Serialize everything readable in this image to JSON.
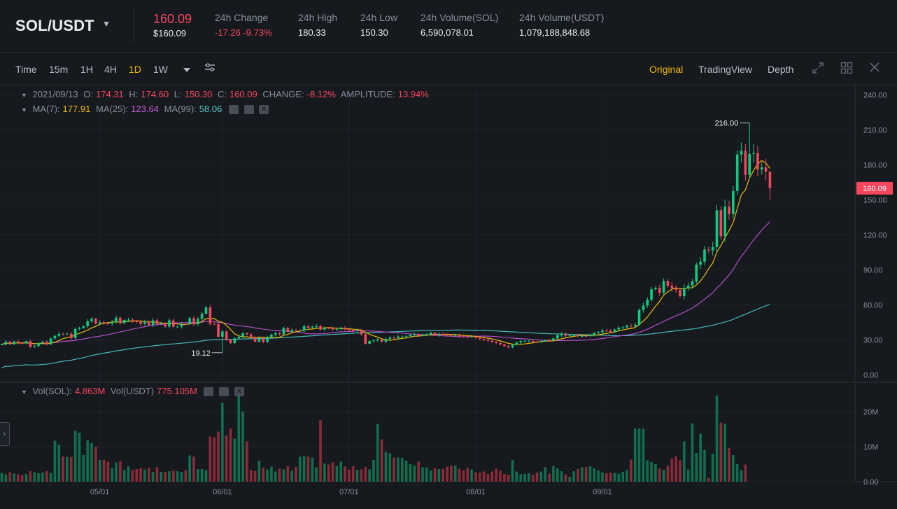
{
  "header": {
    "pair": "SOL/USDT",
    "last_price": "160.09",
    "last_price_usd": "$160.09",
    "stats": [
      {
        "label": "24h Change",
        "value": "-17.26 -9.73%",
        "negative": true
      },
      {
        "label": "24h High",
        "value": "180.33",
        "negative": false
      },
      {
        "label": "24h Low",
        "value": "150.30",
        "negative": false
      },
      {
        "label": "24h Volume(SOL)",
        "value": "6,590,078.01",
        "negative": false
      },
      {
        "label": "24h Volume(USDT)",
        "value": "1,079,188,848.68",
        "negative": false
      }
    ]
  },
  "toolbar": {
    "intervals": [
      "Time",
      "15m",
      "1H",
      "4H",
      "1D",
      "1W"
    ],
    "active_interval": "1D",
    "views": [
      "Original",
      "TradingView",
      "Depth"
    ],
    "active_view": "Original",
    "icons": [
      "chevron-down-icon",
      "settings-sliders-icon",
      "expand-icon",
      "grid-icon",
      "close-icon"
    ]
  },
  "legend": {
    "date": "2021/09/13",
    "o_label": "O:",
    "o": "174.31",
    "h_label": "H:",
    "h": "174.60",
    "l_label": "L:",
    "l": "150.30",
    "c_label": "C:",
    "c": "160.09",
    "change_label": "CHANGE:",
    "change": "-8.12%",
    "amp_label": "AMPLITUDE:",
    "amp": "13.94%",
    "ma7_label": "MA(7):",
    "ma7": "177.91",
    "ma25_label": "MA(25):",
    "ma25": "123.64",
    "ma99_label": "MA(99):",
    "ma99": "58.06",
    "vol_sol_label": "Vol(SOL):",
    "vol_sol": "4.863M",
    "vol_usdt_label": "Vol(USDT)",
    "vol_usdt": "775.105M"
  },
  "colors": {
    "up": "#0ecb81",
    "down": "#f6465d",
    "ma7": "#f0b90b",
    "ma25": "#b44dc8",
    "ma99": "#45b7b7",
    "accent": "#f0b90b"
  },
  "chart_data": {
    "type": "candlestick",
    "x_tick_labels": [
      "05/01",
      "06/01",
      "07/01",
      "08/01",
      "09/01"
    ],
    "price_axis": {
      "ticks": [
        0,
        30,
        60,
        90,
        120,
        150,
        180,
        210,
        240
      ],
      "tick_labels": [
        "0.00",
        "30.00",
        "60.00",
        "90.00",
        "120.00",
        "150.00",
        "180.00",
        "210.00",
        "240.00"
      ],
      "range": [
        -5,
        247
      ]
    },
    "volume_axis": {
      "ticks": [
        0,
        10,
        20
      ],
      "tick_labels": [
        "0.00",
        "10M",
        "20M"
      ],
      "range": [
        0,
        28
      ]
    },
    "last_price_label": "160.09",
    "annotations": [
      {
        "text": "216.00",
        "kind": "high"
      },
      {
        "text": "19.12",
        "kind": "low"
      }
    ],
    "candles_start_date": "2021/04/07",
    "closes": [
      26.2,
      28.6,
      26.4,
      28.8,
      27.5,
      27.1,
      29.0,
      24.1,
      24.8,
      27.5,
      28.6,
      26.4,
      31.3,
      33.6,
      35.3,
      35.0,
      35.4,
      31.6,
      39.4,
      40.3,
      41.8,
      46.1,
      48.2,
      44.2,
      45.3,
      44.3,
      44.0,
      45.3,
      49.1,
      44.5,
      47.2,
      47.4,
      46.2,
      45.5,
      43.8,
      45.9,
      42.9,
      46.9,
      43.8,
      44.3,
      41.5,
      46.8,
      41.5,
      41.5,
      43.8,
      43.7,
      48.7,
      43.6,
      48.0,
      52.6,
      58.0,
      44.0,
      43.7,
      32.8,
      37.3,
      30.2,
      27.4,
      31.4,
      32.7,
      35.8,
      34.8,
      32.7,
      28.6,
      31.8,
      28.4,
      32.6,
      34.6,
      35.8,
      35.0,
      40.4,
      37.0,
      38.6,
      38.1,
      38.2,
      41.8,
      40.5,
      41.4,
      41.8,
      39.0,
      40.4,
      39.9,
      39.2,
      39.4,
      40.5,
      39.2,
      38.8,
      37.8,
      38.3,
      34.9,
      26.8,
      29.1,
      29.6,
      30.6,
      28.5,
      31.0,
      32.1,
      31.8,
      33.0,
      33.0,
      33.2,
      34.4,
      34.9,
      33.7,
      34.7,
      34.9,
      36.2,
      34.2,
      35.3,
      34.6,
      34.3,
      33.8,
      34.3,
      33.2,
      32.8,
      32.7,
      33.0,
      31.9,
      31.1,
      30.2,
      29.4,
      28.2,
      27.4,
      26.2,
      24.8,
      23.8,
      25.9,
      28.0,
      29.1,
      29.1,
      29.3,
      28.4,
      28.2,
      29.0,
      30.0,
      29.7,
      31.3,
      34.1,
      35.4,
      33.6,
      34.0,
      34.2,
      33.4,
      33.5,
      33.4,
      34.3,
      35.9,
      36.7,
      38.2,
      38.1,
      36.9,
      39.0,
      40.6,
      40.9,
      42.3,
      41.9,
      43.1,
      55.7,
      59.6,
      64.5,
      73.5,
      74.6,
      70.5,
      80.6,
      76.5,
      74.4,
      72.9,
      67.6,
      74.6,
      76.7,
      80.2,
      94.6,
      97.2,
      107.6,
      106.8,
      109.6,
      141.2,
      118.9,
      144.3,
      137.9,
      157.7,
      189.0,
      192.1,
      171.6,
      189.5,
      190.2,
      176.1,
      177.9,
      174.3,
      160.1
    ],
    "volumes": [
      2.5,
      2.1,
      2.7,
      2.3,
      2.1,
      1.9,
      2.2,
      3.0,
      2.7,
      2.4,
      2.6,
      3.0,
      2.5,
      11.7,
      10.6,
      7.2,
      7.1,
      7.1,
      14.5,
      14.0,
      7.6,
      11.8,
      11.0,
      10.0,
      6.2,
      6.3,
      5.7,
      4.0,
      5.5,
      5.9,
      3.3,
      4.4,
      3.3,
      3.6,
      3.9,
      3.5,
      3.9,
      2.8,
      4.1,
      2.8,
      2.8,
      3.0,
      3.2,
      3.0,
      2.8,
      3.2,
      7.5,
      7.2,
      3.6,
      3.6,
      3.3,
      12.9,
      12.7,
      14.3,
      22.5,
      13.2,
      15.2,
      12.3,
      25.6,
      20.1,
      11.5,
      3.4,
      3.0,
      6.0,
      4.0,
      3.5,
      4.3,
      2.9,
      3.7,
      3.5,
      4.4,
      3.1,
      4.2,
      7.1,
      7.3,
      7.2,
      6.9,
      4.1,
      17.6,
      5.2,
      4.9,
      5.5,
      4.5,
      5.7,
      4.4,
      3.5,
      4.4,
      3.4,
      3.5,
      4.2,
      3.5,
      6.2,
      16.5,
      12.1,
      8.5,
      8.1,
      6.9,
      6.9,
      6.8,
      6.0,
      5.0,
      4.6,
      5.7,
      4.1,
      4.1,
      3.2,
      3.9,
      3.6,
      3.7,
      4.3,
      4.6,
      4.6,
      3.7,
      3.2,
      3.9,
      3.5,
      2.7,
      2.6,
      2.9,
      2.2,
      2.9,
      3.7,
      3.1,
      2.2,
      2.0,
      6.2,
      2.9,
      2.1,
      2.2,
      2.4,
      2.0,
      2.6,
      2.9,
      4.1,
      2.3,
      4.5,
      3.8,
      3.0,
      2.1,
      1.4,
      3.0,
      3.6,
      4.1,
      4.2,
      4.4,
      3.8,
      3.2,
      2.7,
      2.4,
      2.6,
      2.5,
      2.3,
      2.8,
      3.3,
      6.3,
      15.2,
      15.2,
      15.1,
      6.1,
      5.6,
      5.0,
      3.8,
      3.4,
      4.5,
      6.6,
      7.2,
      6.1,
      11.5,
      3.5,
      16.7,
      8.2,
      13.7,
      9.0,
      1.1,
      8.0,
      24.6,
      16.9,
      16.5,
      9.6,
      7.6,
      5.0,
      3.3,
      4.9
    ],
    "ma_names": [
      "MA(7)",
      "MA(25)",
      "MA(99)"
    ]
  }
}
